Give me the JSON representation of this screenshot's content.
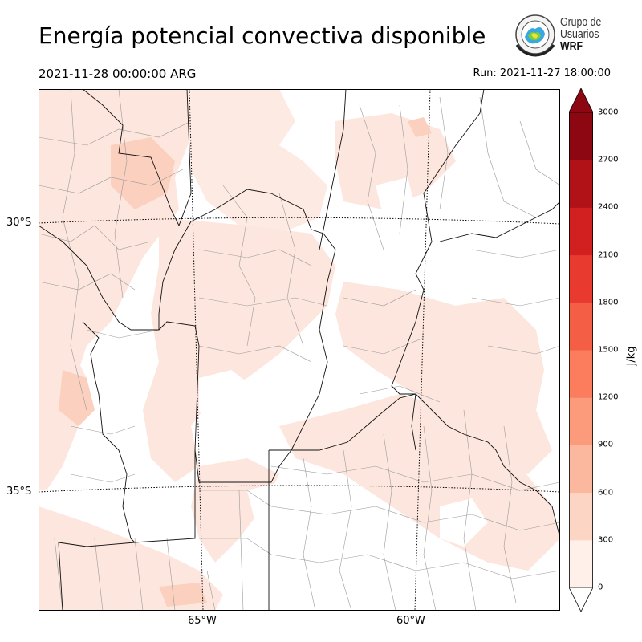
{
  "title": "Energía potencial convectiva disponible",
  "valid_time": "2021-11-28 00:00:00 ARG",
  "run_time": "Run: 2021-11-27 18:00:00",
  "logo": {
    "line1": "Grupo de",
    "line2": "Usuarios",
    "line3": "WRF"
  },
  "map_axes": {
    "lat_labels": [
      "30°S",
      "35°S"
    ],
    "lon_labels": [
      "65°W",
      "60°W"
    ]
  },
  "colorbar": {
    "unit": "J/kg",
    "ticks": [
      "0",
      "300",
      "600",
      "900",
      "1200",
      "1500",
      "1800",
      "2100",
      "2400",
      "2700",
      "3000"
    ],
    "colors": [
      "#fff0e9",
      "#fdd5c5",
      "#fcb89f",
      "#fc9a7c",
      "#fb7d5d",
      "#f45e44",
      "#e83a2f",
      "#d1201f",
      "#b11218",
      "#8c0711"
    ],
    "extend": "both"
  },
  "colors": {
    "fill_low": "#fde6dd",
    "fill_mid": "#fbd0bf",
    "border_province": "#111111",
    "border_department": "#9a9a9a"
  }
}
